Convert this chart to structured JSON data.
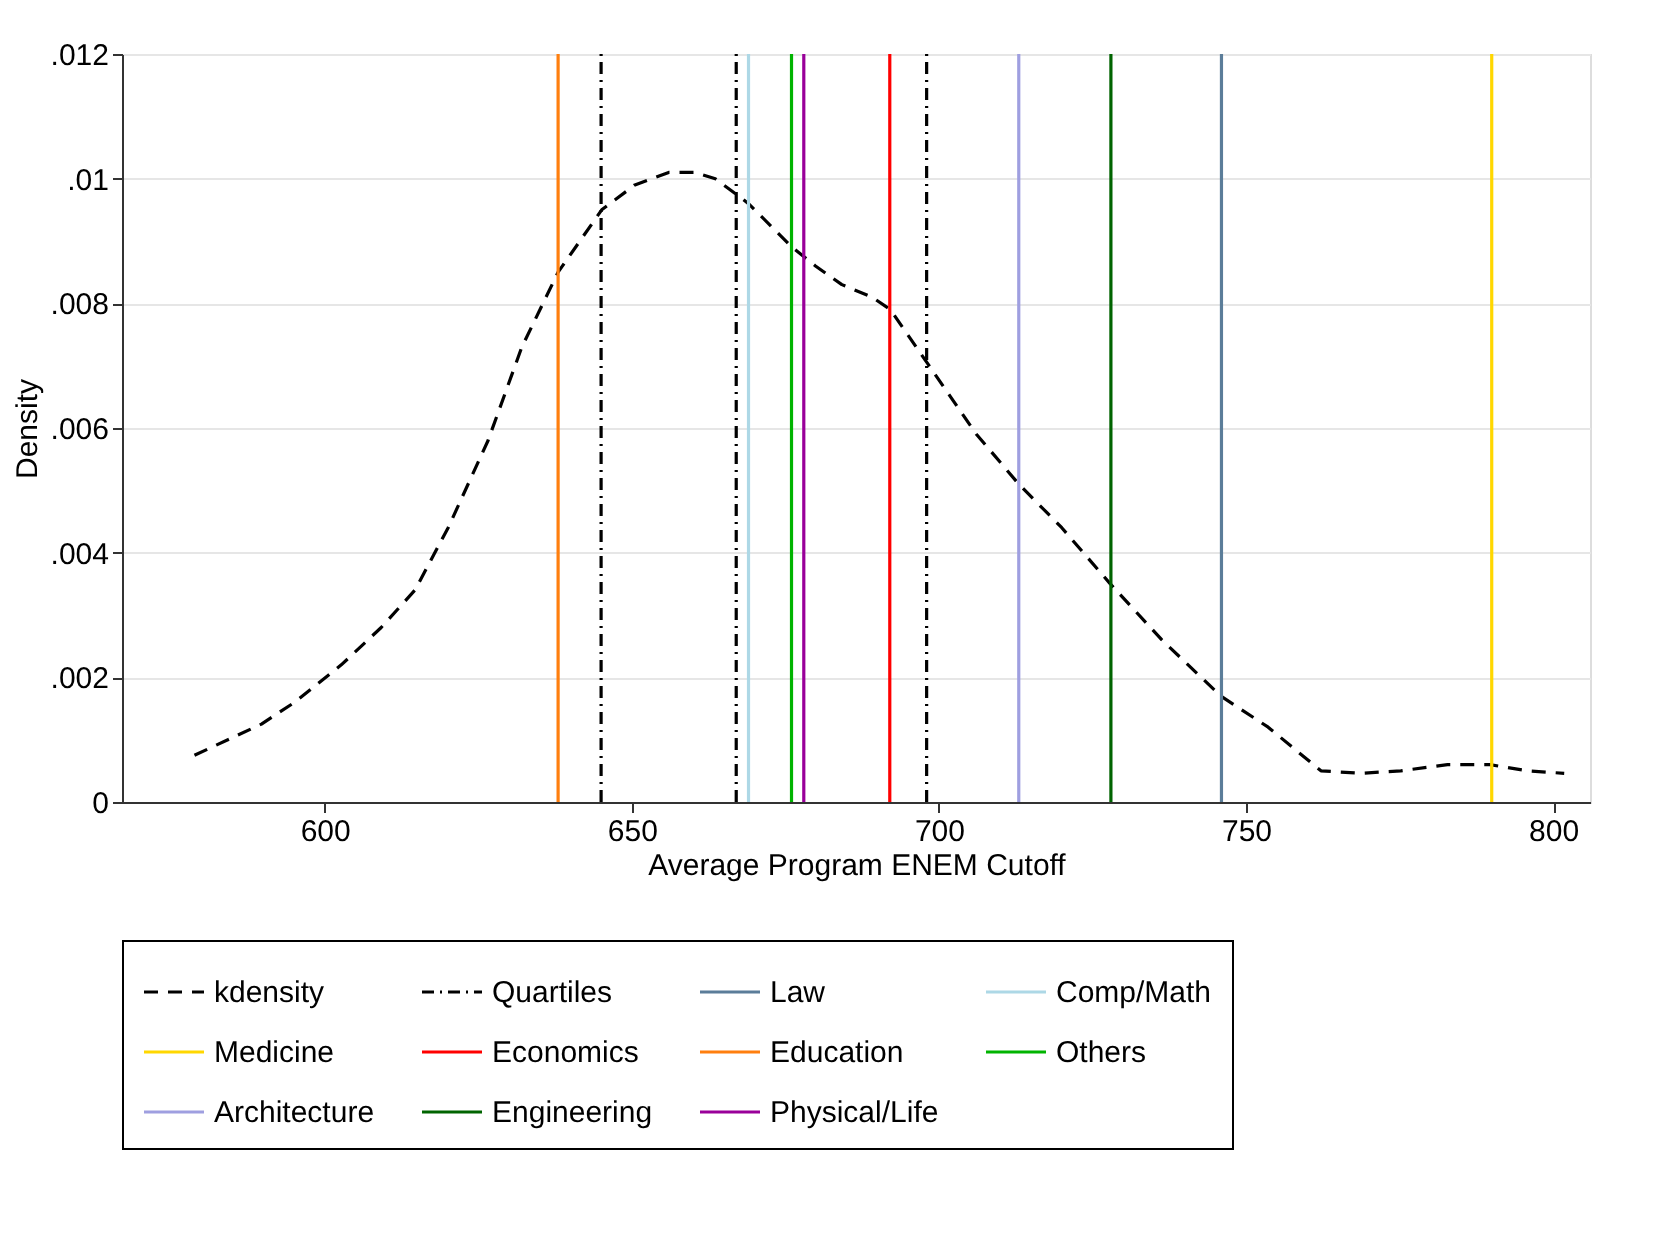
{
  "chart_data": {
    "type": "line",
    "xlabel": "Average Program ENEM Cutoff",
    "ylabel": "Density",
    "xlim": [
      567,
      806
    ],
    "xticks": [
      600,
      650,
      700,
      750,
      800
    ],
    "ylim": [
      0,
      0.012
    ],
    "yticks": [
      {
        "value": 0,
        "label": "0"
      },
      {
        "value": 0.002,
        "label": ".002"
      },
      {
        "value": 0.004,
        "label": ".004"
      },
      {
        "value": 0.006,
        "label": ".006"
      },
      {
        "value": 0.008,
        "label": ".008"
      },
      {
        "value": 0.01,
        "label": ".01"
      },
      {
        "value": 0.012,
        "label": ".012"
      }
    ],
    "grid": "y",
    "legend": "bottom",
    "series": [
      {
        "name": "kdensity",
        "color": "#000000",
        "line_style": "dashed",
        "x": [
          578.8,
          589.7,
          595.1,
          602.7,
          609.2,
          614.7,
          620.1,
          626.6,
          632.1,
          638,
          645.1,
          650.5,
          656,
          660.3,
          663.6,
          669,
          676.1,
          679.9,
          684.2,
          689.1,
          692.1,
          698.4,
          706.1,
          713,
          720,
          727.9,
          736.3,
          745.9,
          753.6,
          762.2,
          768.7,
          775.2,
          782.8,
          789.7,
          795.8,
          801.8
        ],
        "values": [
          0.00075,
          0.00125,
          0.0016,
          0.0022,
          0.0028,
          0.0034,
          0.0044,
          0.0058,
          0.0073,
          0.0085,
          0.0095,
          0.0099,
          0.0101,
          0.0101,
          0.01,
          0.0096,
          0.0089,
          0.0086,
          0.0083,
          0.0081,
          0.0079,
          0.007,
          0.0059,
          0.0051,
          0.0044,
          0.0035,
          0.0026,
          0.0017,
          0.0012,
          0.0005,
          0.00046,
          0.0005,
          0.0006,
          0.0006,
          0.0005,
          0.00046
        ]
      }
    ],
    "ref_lines": [
      {
        "axis": "x",
        "value": 645,
        "label": "Quartiles",
        "color": "#000000",
        "line_style": "dashdot"
      },
      {
        "axis": "x",
        "value": 667,
        "color": "#000000",
        "line_style": "dashdot"
      },
      {
        "axis": "x",
        "value": 698,
        "color": "#000000",
        "line_style": "dashdot"
      },
      {
        "axis": "x",
        "value": 746,
        "label": "Law",
        "color": "#5b7d99",
        "line_style": "solid"
      },
      {
        "axis": "x",
        "value": 669,
        "label": "Comp/Math",
        "color": "#add8e6",
        "line_style": "solid"
      },
      {
        "axis": "x",
        "value": 790,
        "label": "Medicine",
        "color": "#ffd700",
        "line_style": "solid"
      },
      {
        "axis": "x",
        "value": 692,
        "label": "Economics",
        "color": "#ff0000",
        "line_style": "solid"
      },
      {
        "axis": "x",
        "value": 638,
        "label": "Education",
        "color": "#ff7f0e",
        "line_style": "solid"
      },
      {
        "axis": "x",
        "value": 676,
        "label": "Others",
        "color": "#00b400",
        "line_style": "solid"
      },
      {
        "axis": "x",
        "value": 713,
        "label": "Architecture",
        "color": "#9f9fe0",
        "line_style": "solid"
      },
      {
        "axis": "x",
        "value": 728,
        "label": "Engineering",
        "color": "#006400",
        "line_style": "solid"
      },
      {
        "axis": "x",
        "value": 678,
        "label": "Physical/Life",
        "color": "#990099",
        "line_style": "solid"
      }
    ]
  }
}
